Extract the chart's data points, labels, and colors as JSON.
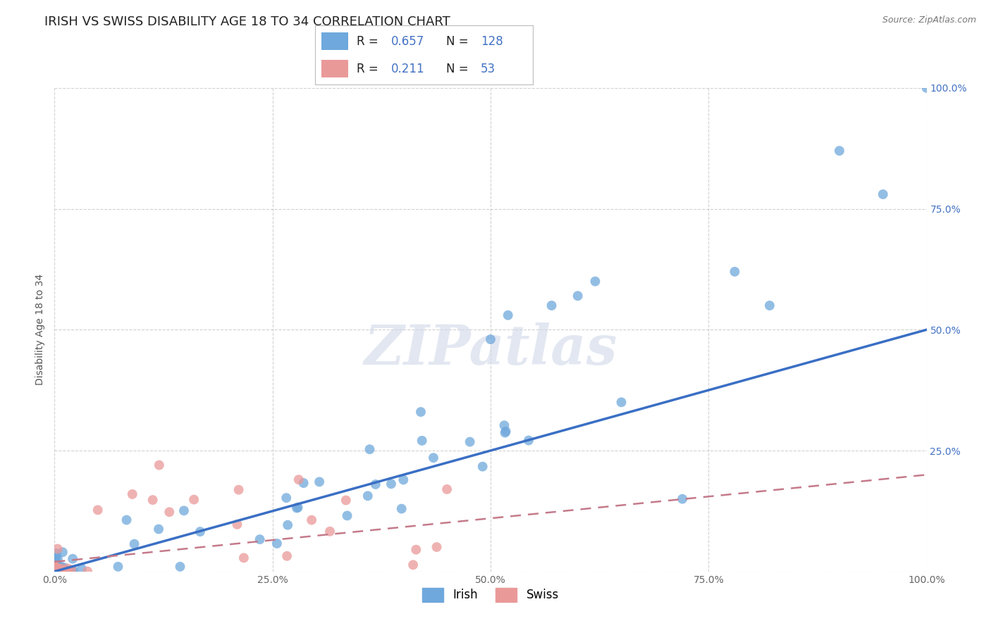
{
  "title": "IRISH VS SWISS DISABILITY AGE 18 TO 34 CORRELATION CHART",
  "source": "Source: ZipAtlas.com",
  "ylabel": "Disability Age 18 to 34",
  "xlim": [
    0,
    1.0
  ],
  "ylim": [
    0,
    1.0
  ],
  "xticks": [
    0.0,
    0.25,
    0.5,
    0.75,
    1.0
  ],
  "yticks": [
    0.0,
    0.25,
    0.5,
    0.75,
    1.0
  ],
  "xticklabels": [
    "0.0%",
    "25.0%",
    "50.0%",
    "75.0%",
    "100.0%"
  ],
  "yticklabels": [
    "",
    "25.0%",
    "50.0%",
    "75.0%",
    "100.0%"
  ],
  "irish_R": 0.657,
  "irish_N": 128,
  "swiss_R": 0.211,
  "swiss_N": 53,
  "irish_color": "#6fa8dc",
  "swiss_color": "#ea9999",
  "irish_line_color": "#3a6fc4",
  "swiss_line_color": "#c47a8a",
  "background_color": "#ffffff",
  "grid_color": "#cccccc",
  "watermark": "ZIPatlas",
  "title_fontsize": 13,
  "label_fontsize": 10,
  "tick_fontsize": 10,
  "legend_fontsize": 12,
  "irish_line_x0": 0.0,
  "irish_line_y0": 0.0,
  "irish_line_x1": 1.0,
  "irish_line_y1": 0.5,
  "swiss_line_x0": 0.0,
  "swiss_line_y0": 0.02,
  "swiss_line_x1": 1.0,
  "swiss_line_y1": 0.2
}
